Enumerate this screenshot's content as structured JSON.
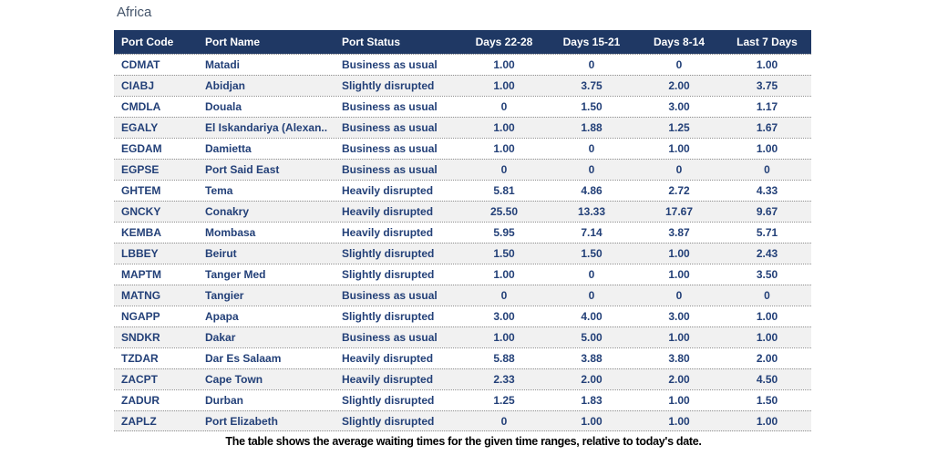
{
  "page": {
    "title": "Africa",
    "caption": "The table shows the average waiting times for the given time ranges, relative to today's date."
  },
  "colors": {
    "header_background": "#1F3864",
    "header_text": "#FFFFFF",
    "row_text": "#234078",
    "alt_row_background": "#F1F1F1",
    "title_text": "#44546A",
    "row_divider": "#8F8F8F"
  },
  "chart_data": {
    "type": "table",
    "title": "Africa",
    "caption": "The table shows the average waiting times for the given time ranges, relative to today's date.",
    "columns": [
      "Port Code",
      "Port Name",
      "Port Status",
      "Days 22-28",
      "Days 15-21",
      "Days 8-14",
      "Last 7 Days"
    ],
    "rows": [
      [
        "CDMAT",
        "Matadi",
        "Business as usual",
        "1.00",
        "0",
        "0",
        "1.00"
      ],
      [
        "CIABJ",
        "Abidjan",
        "Slightly disrupted",
        "1.00",
        "3.75",
        "2.00",
        "3.75"
      ],
      [
        "CMDLA",
        "Douala",
        "Business as usual",
        "0",
        "1.50",
        "3.00",
        "1.17"
      ],
      [
        "EGALY",
        "El Iskandariya (Alexan..",
        "Business as usual",
        "1.00",
        "1.88",
        "1.25",
        "1.67"
      ],
      [
        "EGDAM",
        "Damietta",
        "Business as usual",
        "1.00",
        "0",
        "1.00",
        "1.00"
      ],
      [
        "EGPSE",
        "Port Said East",
        "Business as usual",
        "0",
        "0",
        "0",
        "0"
      ],
      [
        "GHTEM",
        "Tema",
        "Heavily disrupted",
        "5.81",
        "4.86",
        "2.72",
        "4.33"
      ],
      [
        "GNCKY",
        "Conakry",
        "Heavily disrupted",
        "25.50",
        "13.33",
        "17.67",
        "9.67"
      ],
      [
        "KEMBA",
        "Mombasa",
        "Heavily disrupted",
        "5.95",
        "7.14",
        "3.87",
        "5.71"
      ],
      [
        "LBBEY",
        "Beirut",
        "Slightly disrupted",
        "1.50",
        "1.50",
        "1.00",
        "2.43"
      ],
      [
        "MAPTM",
        "Tanger Med",
        "Slightly disrupted",
        "1.00",
        "0",
        "1.00",
        "3.50"
      ],
      [
        "MATNG",
        "Tangier",
        "Business as usual",
        "0",
        "0",
        "0",
        "0"
      ],
      [
        "NGAPP",
        "Apapa",
        "Slightly disrupted",
        "3.00",
        "4.00",
        "3.00",
        "1.00"
      ],
      [
        "SNDKR",
        "Dakar",
        "Business as usual",
        "1.00",
        "5.00",
        "1.00",
        "1.00"
      ],
      [
        "TZDAR",
        "Dar Es Salaam",
        "Heavily disrupted",
        "5.88",
        "3.88",
        "3.80",
        "2.00"
      ],
      [
        "ZACPT",
        "Cape Town",
        "Heavily disrupted",
        "2.33",
        "2.00",
        "2.00",
        "4.50"
      ],
      [
        "ZADUR",
        "Durban",
        "Slightly disrupted",
        "1.25",
        "1.83",
        "1.00",
        "1.50"
      ],
      [
        "ZAPLZ",
        "Port Elizabeth",
        "Slightly disrupted",
        "0",
        "1.00",
        "1.00",
        "1.00"
      ]
    ]
  }
}
